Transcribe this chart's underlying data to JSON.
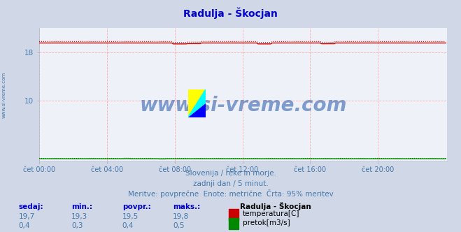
{
  "title": "Radulja - Škocjan",
  "title_color": "#0000cc",
  "bg_color": "#d0d8e8",
  "plot_bg_color": "#eef2f8",
  "grid_color_v": "#ffaaaa",
  "grid_color_h": "#ffaaaa",
  "xlabel_ticks": [
    "čet 00:00",
    "čet 04:00",
    "čet 08:00",
    "čet 12:00",
    "čet 16:00",
    "čet 20:00"
  ],
  "xtick_positions": [
    0,
    48,
    96,
    144,
    192,
    240
  ],
  "xlim": [
    0,
    289
  ],
  "ylim": [
    0,
    22
  ],
  "yticks": [
    10,
    18
  ],
  "yticklabels": [
    "10",
    "18"
  ],
  "temp_mean": 19.5,
  "temp_min": 19.3,
  "temp_max": 19.8,
  "temp_now": 19.7,
  "flow_mean": 0.4,
  "flow_min": 0.3,
  "flow_max": 0.5,
  "flow_now": 0.4,
  "temp_color": "#cc0000",
  "temp_upper_color": "#cc0000",
  "flow_color": "#008800",
  "flow_upper_color": "#008800",
  "watermark_text": "www.si-vreme.com",
  "watermark_color": "#2255aa",
  "subtitle1": "Slovenija / reke in morje.",
  "subtitle2": "zadnji dan / 5 minut.",
  "subtitle3": "Meritve: povprečne  Enote: metrične  Črta: 95% meritev",
  "subtitle_color": "#4477aa",
  "legend_title": "Radulja - Škocjan",
  "label_temp": "temperatura[C]",
  "label_flow": "pretok[m3/s]",
  "footer_headers": [
    "sedaj:",
    "min.:",
    "povpr.:",
    "maks.:"
  ],
  "footer_values_temp": [
    "19,7",
    "19,3",
    "19,5",
    "19,8"
  ],
  "footer_values_flow": [
    "0,4",
    "0,3",
    "0,4",
    "0,5"
  ],
  "footer_color": "#4477aa",
  "footer_bold_color": "#0000cc",
  "left_label": "www.si-vreme.com",
  "left_label_color": "#4477aa",
  "spine_color": "#aabbcc",
  "axis_arrow_color": "#cc0000"
}
